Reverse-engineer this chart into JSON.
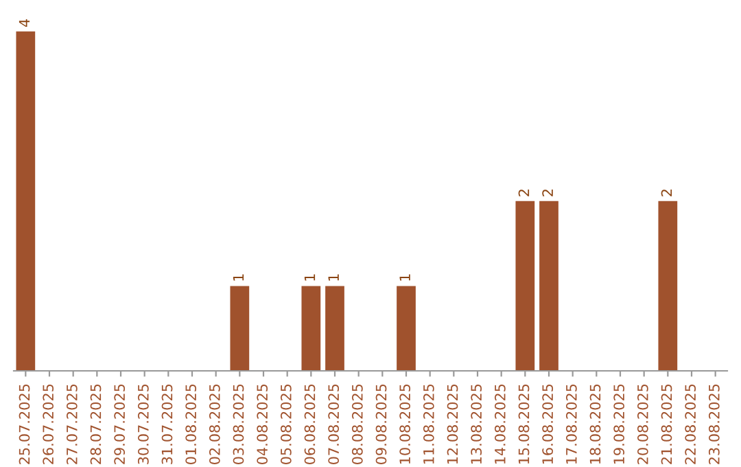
{
  "chart_data": {
    "type": "bar",
    "categories": [
      "25.07.2025",
      "26.07.2025",
      "27.07.2025",
      "28.07.2025",
      "29.07.2025",
      "30.07.2025",
      "31.07.2025",
      "01.08.2025",
      "02.08.2025",
      "03.08.2025",
      "04.08.2025",
      "05.08.2025",
      "06.08.2025",
      "07.08.2025",
      "08.08.2025",
      "09.08.2025",
      "10.08.2025",
      "11.08.2025",
      "12.08.2025",
      "13.08.2025",
      "14.08.2025",
      "15.08.2025",
      "16.08.2025",
      "17.08.2025",
      "18.08.2025",
      "19.08.2025",
      "20.08.2025",
      "21.08.2025",
      "22.08.2025",
      "23.08.2025"
    ],
    "values": [
      4,
      0,
      0,
      0,
      0,
      0,
      0,
      0,
      0,
      1,
      0,
      0,
      1,
      1,
      0,
      0,
      1,
      0,
      0,
      0,
      0,
      2,
      2,
      0,
      0,
      0,
      0,
      2,
      0,
      0
    ],
    "value_labels": [
      "4",
      null,
      null,
      null,
      null,
      null,
      null,
      null,
      null,
      "1",
      null,
      null,
      "1",
      "1",
      null,
      null,
      "1",
      null,
      null,
      null,
      null,
      "2",
      "2",
      null,
      null,
      null,
      null,
      "2",
      null,
      null
    ],
    "color": "#a0522d",
    "grid": false,
    "legend": false
  }
}
